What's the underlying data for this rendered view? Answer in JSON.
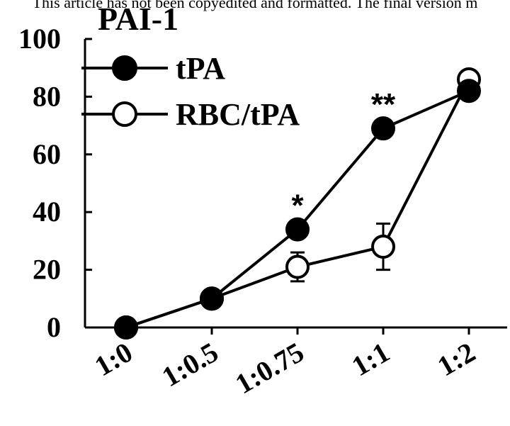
{
  "header": {
    "text": "This article has not been copyedited and formatted. The final version m"
  },
  "chart_data": {
    "type": "line",
    "title": "PAI-1",
    "xlabel": "",
    "ylabel": "",
    "categories": [
      "1:0",
      "1:0.5",
      "1:0.75",
      "1:1",
      "1:2"
    ],
    "ylim": [
      0,
      100
    ],
    "yticks": [
      0,
      20,
      40,
      60,
      80,
      100
    ],
    "grid": false,
    "legend_position": "top-left",
    "series": [
      {
        "name": "tPA",
        "marker": "filled-circle",
        "color": "#000000",
        "values": [
          0,
          10,
          34,
          69,
          82
        ],
        "error": [
          0,
          1,
          2,
          2,
          1
        ]
      },
      {
        "name": "RBC/tPA",
        "marker": "open-circle",
        "color": "#000000",
        "values": [
          0,
          10,
          21,
          28,
          86
        ],
        "error": [
          0,
          1,
          5,
          8,
          1
        ]
      }
    ],
    "annotations": [
      {
        "text": "*",
        "category": "1:0.75"
      },
      {
        "text": "**",
        "category": "1:1"
      }
    ]
  }
}
